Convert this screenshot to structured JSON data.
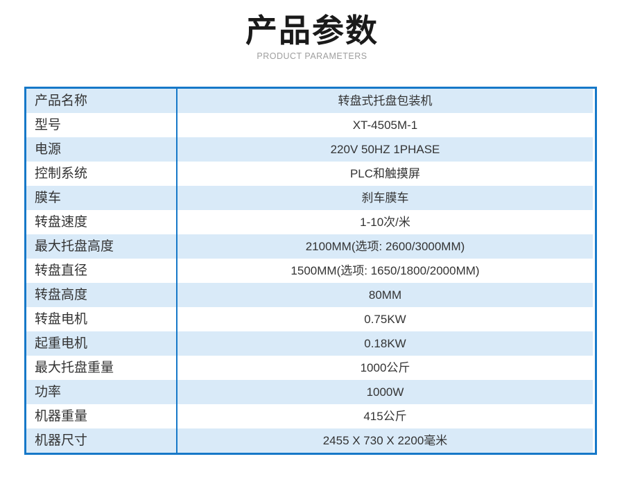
{
  "header": {
    "title": "产品参数",
    "subtitle": "PRODUCT PARAMETERS"
  },
  "table": {
    "rows": [
      {
        "label": "产品名称",
        "value": "转盘式托盘包装机"
      },
      {
        "label": "型号",
        "value": "XT-4505M-1"
      },
      {
        "label": "电源",
        "value": "220V 50HZ 1PHASE"
      },
      {
        "label": "控制系统",
        "value": "PLC和触摸屏"
      },
      {
        "label": "膜车",
        "value": "刹车膜车"
      },
      {
        "label": "转盘速度",
        "value": "1-10次/米"
      },
      {
        "label": "最大托盘高度",
        "value": "2100MM(选项: 2600/3000MM)"
      },
      {
        "label": "转盘直径",
        "value": "1500MM(选项: 1650/1800/2000MM)"
      },
      {
        "label": "转盘高度",
        "value": "80MM"
      },
      {
        "label": "转盘电机",
        "value": "0.75KW"
      },
      {
        "label": "起重电机",
        "value": "0.18KW"
      },
      {
        "label": "最大托盘重量",
        "value": "1000公斤"
      },
      {
        "label": "功率",
        "value": "1000W"
      },
      {
        "label": "机器重量",
        "value": "415公斤"
      },
      {
        "label": "机器尺寸",
        "value": "2455 X 730 X 2200毫米"
      }
    ]
  },
  "colors": {
    "table_border": "#1678c8",
    "row_highlight": "#d9eaf8",
    "row_plain": "#ffffff",
    "title_color": "#1a1a1a",
    "subtitle_color": "#9e9e9e",
    "text_color": "#333333"
  }
}
